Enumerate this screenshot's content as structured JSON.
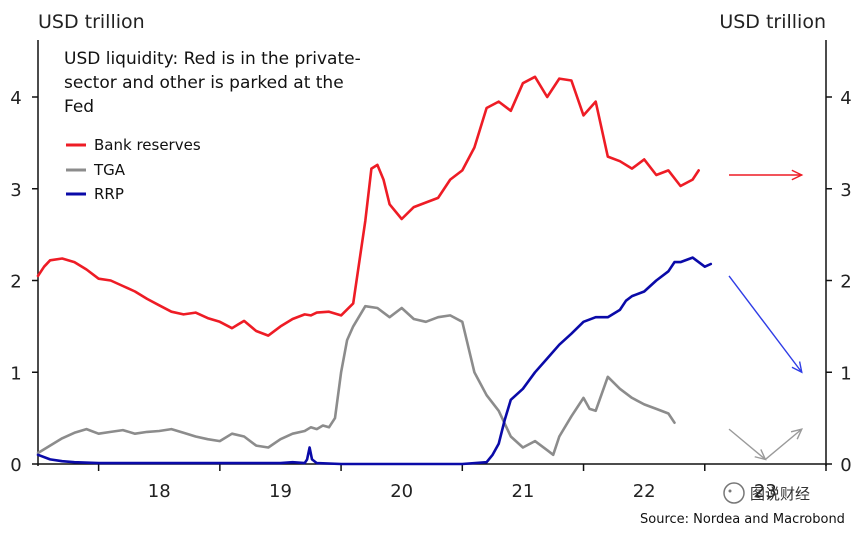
{
  "chart_data": {
    "type": "line",
    "title_lines": [
      "USD liquidity: Red is in the private-",
      "sector and other is parked at the",
      "Fed"
    ],
    "left_axis_title": "USD trillion",
    "right_axis_title": "USD trillion",
    "y_ticks": [
      "0",
      "1",
      "2",
      "3",
      "4"
    ],
    "x_ticks": [
      {
        "label": "18",
        "x": 2018.5
      },
      {
        "label": "19",
        "x": 2019.5
      },
      {
        "label": "20",
        "x": 2020.5
      },
      {
        "label": "21",
        "x": 2021.5
      },
      {
        "label": "22",
        "x": 2022.5
      },
      {
        "label": "23",
        "x": 2023.5
      }
    ],
    "xlim": [
      2017.5,
      2024.0
    ],
    "ylim": [
      0,
      4.75
    ],
    "grid": false,
    "legend_position": "top-left",
    "series": [
      {
        "name": "Bank reserves",
        "color": "#ee1c25",
        "x": [
          2017.5,
          2017.55,
          2017.6,
          2017.7,
          2017.8,
          2017.9,
          2018.0,
          2018.1,
          2018.2,
          2018.3,
          2018.4,
          2018.5,
          2018.6,
          2018.7,
          2018.8,
          2018.9,
          2019.0,
          2019.1,
          2019.15,
          2019.2,
          2019.3,
          2019.4,
          2019.5,
          2019.6,
          2019.7,
          2019.75,
          2019.8,
          2019.9,
          2020.0,
          2020.1,
          2020.2,
          2020.25,
          2020.3,
          2020.35,
          2020.4,
          2020.5,
          2020.6,
          2020.7,
          2020.8,
          2020.9,
          2021.0,
          2021.1,
          2021.2,
          2021.3,
          2021.4,
          2021.5,
          2021.6,
          2021.7,
          2021.8,
          2021.9,
          2022.0,
          2022.1,
          2022.2,
          2022.3,
          2022.4,
          2022.5,
          2022.6,
          2022.7,
          2022.8,
          2022.9,
          2022.95
        ],
        "values": [
          2.05,
          2.15,
          2.22,
          2.24,
          2.2,
          2.12,
          2.02,
          2.0,
          1.94,
          1.88,
          1.8,
          1.73,
          1.66,
          1.63,
          1.65,
          1.59,
          1.55,
          1.48,
          1.52,
          1.56,
          1.45,
          1.4,
          1.5,
          1.58,
          1.63,
          1.62,
          1.65,
          1.66,
          1.62,
          1.75,
          2.65,
          3.22,
          3.26,
          3.1,
          2.83,
          2.67,
          2.8,
          2.85,
          2.9,
          3.1,
          3.2,
          3.45,
          3.88,
          3.95,
          3.85,
          4.15,
          4.22,
          4.0,
          4.2,
          4.18,
          3.8,
          3.95,
          3.35,
          3.3,
          3.22,
          3.32,
          3.15,
          3.2,
          3.03,
          3.1,
          3.2
        ]
      },
      {
        "name": "TGA",
        "color": "#8c8c8c",
        "x": [
          2017.5,
          2017.6,
          2017.7,
          2017.8,
          2017.9,
          2018.0,
          2018.1,
          2018.2,
          2018.3,
          2018.4,
          2018.5,
          2018.6,
          2018.7,
          2018.8,
          2018.9,
          2019.0,
          2019.1,
          2019.2,
          2019.3,
          2019.4,
          2019.5,
          2019.6,
          2019.7,
          2019.75,
          2019.8,
          2019.85,
          2019.9,
          2019.95,
          2020.0,
          2020.05,
          2020.1,
          2020.2,
          2020.3,
          2020.4,
          2020.5,
          2020.6,
          2020.7,
          2020.8,
          2020.9,
          2021.0,
          2021.1,
          2021.2,
          2021.3,
          2021.4,
          2021.5,
          2021.6,
          2021.7,
          2021.75,
          2021.8,
          2021.9,
          2022.0,
          2022.05,
          2022.1,
          2022.2,
          2022.3,
          2022.4,
          2022.5,
          2022.6,
          2022.7,
          2022.75
        ],
        "values": [
          0.12,
          0.2,
          0.28,
          0.34,
          0.38,
          0.33,
          0.35,
          0.37,
          0.33,
          0.35,
          0.36,
          0.38,
          0.34,
          0.3,
          0.27,
          0.25,
          0.33,
          0.3,
          0.2,
          0.18,
          0.27,
          0.33,
          0.36,
          0.4,
          0.38,
          0.42,
          0.4,
          0.5,
          1.0,
          1.35,
          1.5,
          1.72,
          1.7,
          1.6,
          1.7,
          1.58,
          1.55,
          1.6,
          1.62,
          1.55,
          1.0,
          0.75,
          0.58,
          0.3,
          0.18,
          0.25,
          0.15,
          0.1,
          0.3,
          0.52,
          0.72,
          0.6,
          0.58,
          0.95,
          0.82,
          0.72,
          0.65,
          0.6,
          0.55,
          0.45
        ]
      },
      {
        "name": "RRP",
        "color": "#0a0aa8",
        "x": [
          2017.5,
          2017.6,
          2017.7,
          2017.8,
          2018.0,
          2018.5,
          2019.0,
          2019.5,
          2019.6,
          2019.7,
          2019.72,
          2019.74,
          2019.76,
          2019.8,
          2020.0,
          2020.5,
          2021.0,
          2021.2,
          2021.25,
          2021.3,
          2021.35,
          2021.4,
          2021.5,
          2021.6,
          2021.7,
          2021.8,
          2021.9,
          2022.0,
          2022.1,
          2022.2,
          2022.3,
          2022.35,
          2022.4,
          2022.5,
          2022.6,
          2022.7,
          2022.75,
          2022.8,
          2022.9,
          2023.0,
          2023.05
        ],
        "values": [
          0.1,
          0.05,
          0.03,
          0.02,
          0.01,
          0.01,
          0.01,
          0.01,
          0.02,
          0.01,
          0.05,
          0.18,
          0.05,
          0.01,
          0.0,
          0.0,
          0.0,
          0.02,
          0.1,
          0.22,
          0.48,
          0.7,
          0.82,
          1.0,
          1.15,
          1.3,
          1.42,
          1.55,
          1.6,
          1.6,
          1.68,
          1.78,
          1.83,
          1.88,
          2.0,
          2.1,
          2.2,
          2.2,
          2.25,
          2.15,
          2.18
        ]
      }
    ],
    "annotations": [
      {
        "name": "bank-reserves-arrow",
        "color": "#ee1c25",
        "x1": 2023.2,
        "y1": 3.15,
        "x2": 2023.8,
        "y2": 3.15
      },
      {
        "name": "rrp-arrow",
        "color": "#2f3de6",
        "x1": 2023.2,
        "y1": 2.05,
        "x2": 2023.8,
        "y2": 1.0
      },
      {
        "name": "tga-arrow-down",
        "color": "#9a9a9a",
        "x1": 2023.2,
        "y1": 0.38,
        "x2": 2023.5,
        "y2": 0.05
      },
      {
        "name": "tga-arrow-up",
        "color": "#9a9a9a",
        "x1": 2023.5,
        "y1": 0.05,
        "x2": 2023.8,
        "y2": 0.38
      }
    ]
  },
  "source": "Source: Nordea and Macrobond",
  "watermark": "图说财经"
}
